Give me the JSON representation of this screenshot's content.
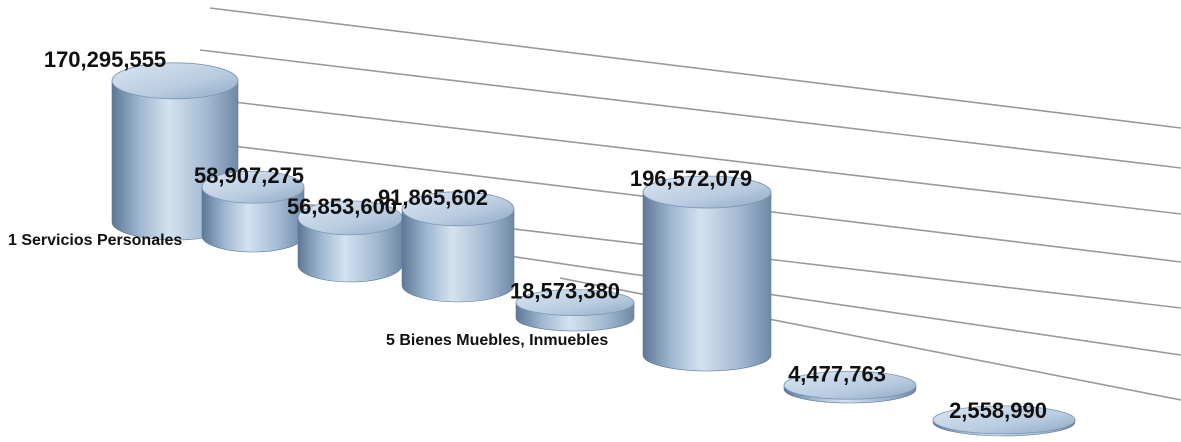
{
  "chart_data": {
    "type": "bar",
    "style": "3d-cylinder",
    "title": "",
    "xlabel": "",
    "ylabel": "",
    "grid": true,
    "legend": "none",
    "categories": [
      "1 Servicios Personales",
      "",
      "",
      "",
      "5 Bienes Muebles, Inmuebles",
      "",
      "",
      ""
    ],
    "values": [
      170295555,
      58907275,
      56853600,
      91865602,
      18573380,
      196572079,
      4477763,
      2558990
    ],
    "value_labels": [
      "170,295,555",
      "58,907,275",
      "56,853,600",
      "91,865,602",
      "18,573,380",
      "196,572,079",
      "4,477,763",
      "2,558,990"
    ],
    "colors": {
      "cylinder_light": "#d4e2f0",
      "cylinder_mid": "#9fb7d0",
      "cylinder_dark": "#5d7896",
      "top_face": "#b8cbe0",
      "gridline": "#9a9a9a",
      "text": "#111111"
    }
  }
}
